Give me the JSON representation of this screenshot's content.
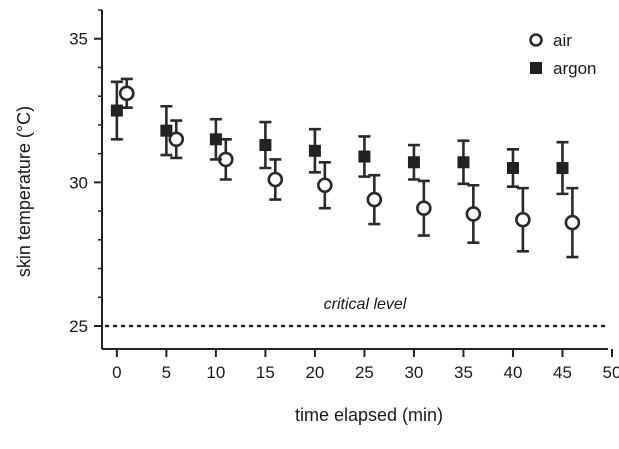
{
  "chart_data": {
    "type": "scatter",
    "title": "",
    "xlabel": "time elapsed (min)",
    "ylabel": "skin temperature (°C)",
    "xlim": [
      -1.5,
      50
    ],
    "ylim": [
      24.2,
      36
    ],
    "xticks": [
      0,
      5,
      10,
      15,
      20,
      25,
      30,
      35,
      40,
      45,
      50
    ],
    "yticks": [
      25,
      30,
      35
    ],
    "grid": false,
    "legend_position": "top-right",
    "series": [
      {
        "name": "air",
        "marker": "open-circle",
        "color": "#2a2a2a",
        "x": [
          1,
          6,
          11,
          16,
          21,
          26,
          31,
          36,
          41,
          46
        ],
        "y": [
          33.1,
          31.5,
          30.8,
          30.1,
          29.9,
          29.4,
          29.1,
          28.9,
          28.7,
          28.6
        ],
        "err": [
          0.5,
          0.65,
          0.7,
          0.7,
          0.8,
          0.85,
          0.95,
          1.0,
          1.1,
          1.2
        ]
      },
      {
        "name": "argon",
        "marker": "filled-square",
        "color": "#222222",
        "x": [
          0,
          5,
          10,
          15,
          20,
          25,
          30,
          35,
          40,
          45
        ],
        "y": [
          32.5,
          31.8,
          31.5,
          31.3,
          31.1,
          30.9,
          30.7,
          30.7,
          30.5,
          30.5
        ],
        "err": [
          1.0,
          0.85,
          0.7,
          0.8,
          0.75,
          0.7,
          0.6,
          0.75,
          0.65,
          0.9
        ]
      }
    ],
    "reference_line": {
      "y": 25,
      "style": "dotted",
      "label": "critical level"
    }
  }
}
